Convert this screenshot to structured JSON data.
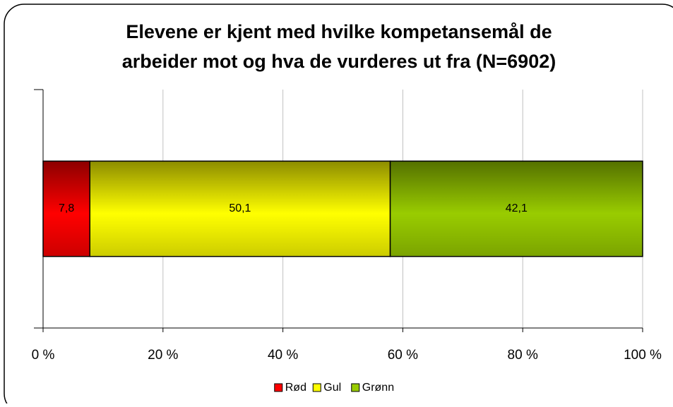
{
  "chart_data": {
    "type": "stacked_hbar",
    "title": "Elevene er kjent med hvilke kompetansemål de arbeider mot og hva de vurderes ut fra (N=6902)",
    "title_lines": [
      "Elevene er kjent med hvilke kompetansemål de",
      "arbeider mot og hva de vurderes ut fra (N=6902)"
    ],
    "categories": [
      null
    ],
    "series": [
      {
        "name": "Rød",
        "color": "#ff0000",
        "values": [
          7.8
        ],
        "value_labels": [
          "7,8"
        ]
      },
      {
        "name": "Gul",
        "color": "#ffff00",
        "values": [
          50.1
        ],
        "value_labels": [
          "50,1"
        ]
      },
      {
        "name": "Grønn",
        "color": "#99cc00",
        "values": [
          42.1
        ],
        "value_labels": [
          "42,1"
        ]
      }
    ],
    "xlim": [
      0,
      100
    ],
    "xticks": [
      {
        "value": 0,
        "label": "0 %"
      },
      {
        "value": 20,
        "label": "20 %"
      },
      {
        "value": 40,
        "label": "40 %"
      },
      {
        "value": 60,
        "label": "60 %"
      },
      {
        "value": 80,
        "label": "80 %"
      },
      {
        "value": 100,
        "label": "100 %"
      }
    ],
    "grid": true,
    "legend": "bottom"
  }
}
